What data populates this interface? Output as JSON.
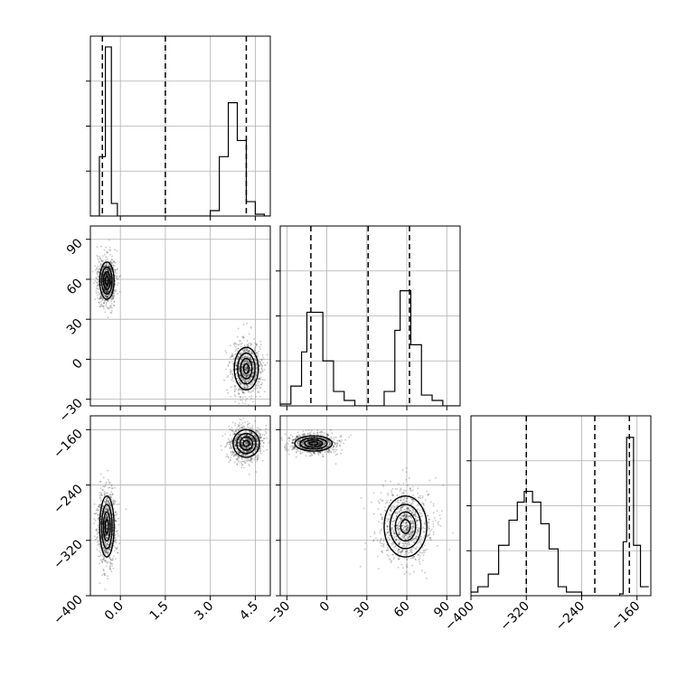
{
  "chart_data": {
    "type": "corner",
    "grid": true,
    "params": [
      {
        "range": [
          -1.0,
          5.0
        ],
        "ticks": [
          0.0,
          1.5,
          3.0,
          4.5
        ],
        "tick_labels": [
          "0.0",
          "1.5",
          "3.0",
          "4.5"
        ],
        "quantiles": [
          -0.6,
          1.5,
          4.2
        ],
        "hist": {
          "edges": [
            -1.0,
            -0.7,
            -0.5,
            -0.3,
            -0.1,
            0.0,
            3.0,
            3.3,
            3.6,
            3.9,
            4.2,
            4.5,
            4.8,
            5.0
          ],
          "counts": [
            0,
            0.33,
            0.94,
            0.07,
            0,
            0,
            0.03,
            0.33,
            0.63,
            0.42,
            0.08,
            0.01,
            0
          ]
        }
      },
      {
        "range": [
          -35,
          100
        ],
        "ticks": [
          -30,
          0,
          30,
          60,
          90
        ],
        "tick_labels": [
          "−30",
          "0",
          "30",
          "60",
          "90"
        ],
        "quantiles": [
          -12,
          31,
          62
        ],
        "hist": {
          "edges": [
            -35,
            -27,
            -19,
            -15,
            -11,
            -3,
            5,
            13,
            21,
            27,
            43,
            51,
            55,
            63,
            71,
            79,
            87,
            95,
            100
          ],
          "counts": [
            0.01,
            0.11,
            0.3,
            0.52,
            0.52,
            0.25,
            0.08,
            0.03,
            0,
            0,
            0.08,
            0.42,
            0.64,
            0.34,
            0.06,
            0.03,
            0,
            0
          ]
        }
      },
      {
        "range": [
          -400,
          -140
        ],
        "ticks": [
          -400,
          -320,
          -240,
          -160
        ],
        "tick_labels": [
          "−400",
          "−320",
          "−240",
          "−160"
        ],
        "quantiles": [
          -320,
          -221,
          -171
        ],
        "hist": {
          "edges": [
            -410,
            -390,
            -375,
            -360,
            -345,
            -333,
            -323,
            -311,
            -299,
            -287,
            -274,
            -262,
            -240,
            -192,
            -185,
            -180,
            -175,
            -165,
            -155,
            -143
          ],
          "counts": [
            0.02,
            0.05,
            0.12,
            0.28,
            0.42,
            0.52,
            0.58,
            0.52,
            0.4,
            0.26,
            0.05,
            0.02,
            0,
            0,
            0.01,
            0.3,
            0.88,
            0.28,
            0.05
          ]
        }
      }
    ],
    "pairs": [
      {
        "x": 0,
        "y": 1,
        "clusters": [
          {
            "center": [
              -0.45,
              59
            ],
            "sigma": [
              0.12,
              7
            ],
            "points": 900
          },
          {
            "center": [
              4.2,
              -7
            ],
            "sigma": [
              0.2,
              8
            ],
            "points": 900
          }
        ]
      },
      {
        "x": 0,
        "y": 2,
        "clusters": [
          {
            "center": [
              -0.45,
              -300
            ],
            "sigma": [
              0.12,
              22
            ],
            "points": 900
          },
          {
            "center": [
              4.2,
              -180
            ],
            "sigma": [
              0.22,
              10
            ],
            "points": 900
          }
        ]
      },
      {
        "x": 1,
        "y": 2,
        "clusters": [
          {
            "center": [
              -10,
              -180
            ],
            "sigma": [
              7,
              5.5
            ],
            "points": 900
          },
          {
            "center": [
              59,
              -300
            ],
            "sigma": [
              8,
              22
            ],
            "points": 900
          }
        ]
      }
    ]
  }
}
